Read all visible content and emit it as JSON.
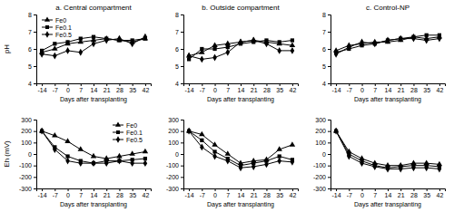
{
  "chart_data": [
    {
      "type": "line",
      "title": "a. Central compartment",
      "x_label": "Days after transplanting",
      "y_label": "pH",
      "legend": "upper left",
      "x": [
        -14,
        -7,
        0,
        7,
        14,
        21,
        28,
        35,
        42
      ],
      "xlim": [
        -17,
        45
      ],
      "xticks": [
        -14,
        -7,
        0,
        7,
        14,
        21,
        28,
        35,
        42
      ],
      "ylim": [
        4,
        8
      ],
      "yticks": [
        4,
        5,
        6,
        7,
        8
      ],
      "series": [
        {
          "name": "Fe0",
          "color": "#000000",
          "marker": "triangle",
          "values": [
            5.8,
            6.0,
            6.3,
            6.4,
            6.5,
            6.6,
            6.5,
            6.4,
            6.6
          ]
        },
        {
          "name": "Fe0.1",
          "color": "#000000",
          "marker": "square",
          "values": [
            5.9,
            6.3,
            6.4,
            6.6,
            6.7,
            6.6,
            6.5,
            6.5,
            6.6
          ]
        },
        {
          "name": "Fe0.5",
          "color": "#000000",
          "marker": "diamond",
          "values": [
            5.7,
            5.6,
            5.9,
            5.8,
            6.3,
            6.5,
            6.6,
            6.3,
            6.7
          ]
        }
      ]
    },
    {
      "type": "line",
      "title": "b. Outside compartment",
      "x_label": "Days after transplanting",
      "x": [
        -14,
        -7,
        0,
        7,
        14,
        21,
        28,
        35,
        42
      ],
      "xlim": [
        -17,
        45
      ],
      "xticks": [
        -14,
        -7,
        0,
        7,
        14,
        21,
        28,
        35,
        42
      ],
      "ylim": [
        4,
        8
      ],
      "yticks": [
        4,
        5,
        6,
        7,
        8
      ],
      "series": [
        {
          "color": "#000000",
          "marker": "triangle",
          "values": [
            5.6,
            5.8,
            6.2,
            6.3,
            6.4,
            6.5,
            6.4,
            6.3,
            6.2
          ]
        },
        {
          "color": "#000000",
          "marker": "square",
          "values": [
            5.4,
            6.0,
            6.0,
            6.1,
            6.3,
            6.4,
            6.5,
            6.4,
            6.5
          ]
        },
        {
          "color": "#000000",
          "marker": "diamond",
          "values": [
            5.6,
            5.4,
            5.5,
            5.8,
            6.4,
            6.5,
            6.3,
            5.9,
            5.9
          ]
        }
      ]
    },
    {
      "type": "line",
      "title": "c. Control-NP",
      "x_label": "Days after transplanting",
      "x": [
        -14,
        -7,
        0,
        7,
        14,
        21,
        28,
        35,
        42
      ],
      "xlim": [
        -17,
        45
      ],
      "xticks": [
        -14,
        -7,
        0,
        7,
        14,
        21,
        28,
        35,
        42
      ],
      "ylim": [
        4,
        8
      ],
      "yticks": [
        4,
        5,
        6,
        7,
        8
      ],
      "series": [
        {
          "color": "#000000",
          "marker": "triangle",
          "values": [
            5.9,
            6.2,
            6.3,
            6.4,
            6.4,
            6.5,
            6.7,
            6.6,
            6.7
          ]
        },
        {
          "color": "#000000",
          "marker": "square",
          "values": [
            5.8,
            6.0,
            6.2,
            6.3,
            6.5,
            6.6,
            6.7,
            6.8,
            6.8
          ]
        },
        {
          "color": "#000000",
          "marker": "diamond",
          "values": [
            5.7,
            6.1,
            6.4,
            6.3,
            6.5,
            6.6,
            6.6,
            6.5,
            6.6
          ]
        }
      ]
    },
    {
      "type": "line",
      "x_label": "Days after transplanting",
      "y_label": "Eh (mV)",
      "legend": "upper right",
      "x": [
        -14,
        -7,
        0,
        7,
        14,
        21,
        28,
        35,
        42
      ],
      "xlim": [
        -17,
        45
      ],
      "xticks": [
        -14,
        -7,
        0,
        7,
        14,
        21,
        28,
        35,
        42
      ],
      "ylim": [
        -300,
        300
      ],
      "yticks": [
        -300,
        -200,
        -100,
        0,
        100,
        200,
        300
      ],
      "series": [
        {
          "name": "Fe0",
          "color": "#000000",
          "marker": "triangle",
          "values": [
            200,
            160,
            110,
            40,
            -20,
            -40,
            -20,
            0,
            20
          ]
        },
        {
          "name": "Fe0.1",
          "color": "#000000",
          "marker": "square",
          "values": [
            200,
            60,
            -20,
            -60,
            -80,
            -60,
            -60,
            -50,
            -40
          ]
        },
        {
          "name": "Fe0.5",
          "color": "#000000",
          "marker": "diamond",
          "values": [
            200,
            40,
            -60,
            -80,
            -80,
            -80,
            -60,
            -80,
            -80
          ]
        }
      ]
    },
    {
      "type": "line",
      "x_label": "Days after transplanting",
      "x": [
        -14,
        -7,
        0,
        7,
        14,
        21,
        28,
        35,
        42
      ],
      "xlim": [
        -17,
        45
      ],
      "xticks": [
        -14,
        -7,
        0,
        7,
        14,
        21,
        28,
        35,
        42
      ],
      "ylim": [
        -300,
        300
      ],
      "yticks": [
        -300,
        -200,
        -100,
        0,
        100,
        200,
        300
      ],
      "series": [
        {
          "color": "#000000",
          "marker": "triangle",
          "values": [
            200,
            170,
            80,
            0,
            -80,
            -60,
            -50,
            40,
            80
          ]
        },
        {
          "color": "#000000",
          "marker": "square",
          "values": [
            200,
            120,
            20,
            -40,
            -100,
            -80,
            -60,
            -20,
            -50
          ]
        },
        {
          "color": "#000000",
          "marker": "diamond",
          "values": [
            200,
            60,
            -20,
            -60,
            -120,
            -110,
            -90,
            -60,
            -70
          ]
        }
      ]
    },
    {
      "type": "line",
      "x_label": "Days after transplanting",
      "x": [
        -14,
        -7,
        0,
        7,
        14,
        21,
        28,
        35,
        42
      ],
      "xlim": [
        -17,
        45
      ],
      "xticks": [
        -14,
        -7,
        0,
        7,
        14,
        21,
        28,
        35,
        42
      ],
      "ylim": [
        -300,
        300
      ],
      "yticks": [
        -300,
        -200,
        -100,
        0,
        100,
        200,
        300
      ],
      "series": [
        {
          "color": "#000000",
          "marker": "triangle",
          "values": [
            200,
            20,
            -40,
            -80,
            -100,
            -100,
            -80,
            -80,
            -90
          ]
        },
        {
          "color": "#000000",
          "marker": "square",
          "values": [
            200,
            0,
            -60,
            -100,
            -120,
            -110,
            -100,
            -100,
            -110
          ]
        },
        {
          "color": "#000000",
          "marker": "diamond",
          "values": [
            200,
            -20,
            -80,
            -110,
            -130,
            -130,
            -120,
            -120,
            -130
          ]
        }
      ]
    }
  ]
}
